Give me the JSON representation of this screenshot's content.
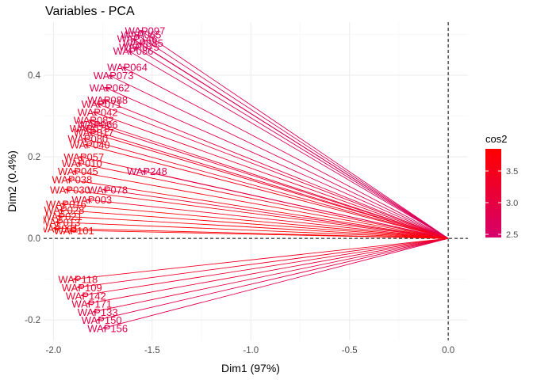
{
  "chart_data": {
    "type": "scatter",
    "subtype": "pca-variable-arrows",
    "title": "Variables - PCA",
    "xlabel": "Dim1 (97%)",
    "ylabel": "Dim2 (0.4%)",
    "xlim": [
      -2.05,
      0.1
    ],
    "ylim": [
      -0.25,
      0.53
    ],
    "xticks": [
      -2.0,
      -1.5,
      -1.0,
      -0.5,
      0.0
    ],
    "xtick_labels": [
      "-2.0",
      "-1.5",
      "-1.0",
      "-0.5",
      "0.0"
    ],
    "yticks": [
      -0.2,
      0.0,
      0.2,
      0.4
    ],
    "ytick_labels": [
      "-0.2",
      "0.0",
      "0.2",
      "0.4"
    ],
    "grid": true,
    "reference_lines": {
      "x": 0,
      "y": 0
    },
    "color_legend": {
      "title": "cos2",
      "ticks": [
        2.5,
        3.0,
        3.5
      ],
      "tick_labels": [
        "2.5",
        "3.0",
        "3.5"
      ],
      "range": [
        2.45,
        3.85
      ],
      "low_color": "#d6006a",
      "high_color": "#ff0000"
    },
    "variables": [
      {
        "label": "WAP097",
        "x": -1.56,
        "y": 0.51,
        "cos2": 2.7
      },
      {
        "label": "WAP065",
        "x": -1.58,
        "y": 0.5,
        "cos2": 2.65
      },
      {
        "label": "WAP146",
        "x": -1.6,
        "y": 0.49,
        "cos2": 2.7
      },
      {
        "label": "WAP085",
        "x": -1.57,
        "y": 0.48,
        "cos2": 2.7
      },
      {
        "label": "WAP075",
        "x": -1.59,
        "y": 0.47,
        "cos2": 2.7
      },
      {
        "label": "WAP086",
        "x": -1.62,
        "y": 0.46,
        "cos2": 2.65
      },
      {
        "label": "WAP064",
        "x": -1.65,
        "y": 0.42,
        "cos2": 2.8
      },
      {
        "label": "WAP073",
        "x": -1.72,
        "y": 0.4,
        "cos2": 2.8
      },
      {
        "label": "WAP062",
        "x": -1.74,
        "y": 0.37,
        "cos2": 2.85
      },
      {
        "label": "WAP088",
        "x": -1.75,
        "y": 0.34,
        "cos2": 3.0
      },
      {
        "label": "WAP071",
        "x": -1.78,
        "y": 0.33,
        "cos2": 3.1
      },
      {
        "label": "WAP042",
        "x": -1.8,
        "y": 0.31,
        "cos2": 3.2
      },
      {
        "label": "WAP082",
        "x": -1.82,
        "y": 0.29,
        "cos2": 3.3
      },
      {
        "label": "WAP066",
        "x": -1.8,
        "y": 0.28,
        "cos2": 3.1
      },
      {
        "label": "WAP079",
        "x": -1.84,
        "y": 0.27,
        "cos2": 3.3
      },
      {
        "label": "WAP017",
        "x": -1.82,
        "y": 0.26,
        "cos2": 3.4
      },
      {
        "label": "WAP080",
        "x": -1.85,
        "y": 0.245,
        "cos2": 3.4
      },
      {
        "label": "WAP040",
        "x": -1.84,
        "y": 0.23,
        "cos2": 3.5
      },
      {
        "label": "WAP057",
        "x": -1.87,
        "y": 0.2,
        "cos2": 3.5
      },
      {
        "label": "WAP010",
        "x": -1.88,
        "y": 0.185,
        "cos2": 3.5
      },
      {
        "label": "WAP248",
        "x": -1.55,
        "y": 0.165,
        "cos2": 2.8
      },
      {
        "label": "WAP045",
        "x": -1.9,
        "y": 0.165,
        "cos2": 3.6
      },
      {
        "label": "WAP038",
        "x": -1.93,
        "y": 0.145,
        "cos2": 3.6
      },
      {
        "label": "WAP078",
        "x": -1.75,
        "y": 0.12,
        "cos2": 3.2
      },
      {
        "label": "WAP030",
        "x": -1.94,
        "y": 0.12,
        "cos2": 3.6
      },
      {
        "label": "WAP003",
        "x": -1.83,
        "y": 0.095,
        "cos2": 3.4
      },
      {
        "label": "WAP016",
        "x": -1.96,
        "y": 0.085,
        "cos2": 3.7
      },
      {
        "label": "WAP028",
        "x": -1.97,
        "y": 0.07,
        "cos2": 3.7
      },
      {
        "label": "WAP021",
        "x": -1.98,
        "y": 0.055,
        "cos2": 3.7
      },
      {
        "label": "WAP013",
        "x": -1.99,
        "y": 0.04,
        "cos2": 3.75
      },
      {
        "label": "WAP001",
        "x": -2.0,
        "y": 0.025,
        "cos2": 3.8
      },
      {
        "label": "WAP101",
        "x": -1.92,
        "y": 0.02,
        "cos2": 3.8
      },
      {
        "label": "WAP156",
        "x": -1.75,
        "y": -0.22,
        "cos2": 2.8
      },
      {
        "label": "WAP150",
        "x": -1.78,
        "y": -0.2,
        "cos2": 2.9
      },
      {
        "label": "WAP133",
        "x": -1.8,
        "y": -0.18,
        "cos2": 3.0
      },
      {
        "label": "WAP171",
        "x": -1.83,
        "y": -0.16,
        "cos2": 3.1
      },
      {
        "label": "WAP142",
        "x": -1.86,
        "y": -0.14,
        "cos2": 3.2
      },
      {
        "label": "WAP109",
        "x": -1.88,
        "y": -0.12,
        "cos2": 3.3
      },
      {
        "label": "WAP118",
        "x": -1.9,
        "y": -0.1,
        "cos2": 3.4
      }
    ]
  }
}
